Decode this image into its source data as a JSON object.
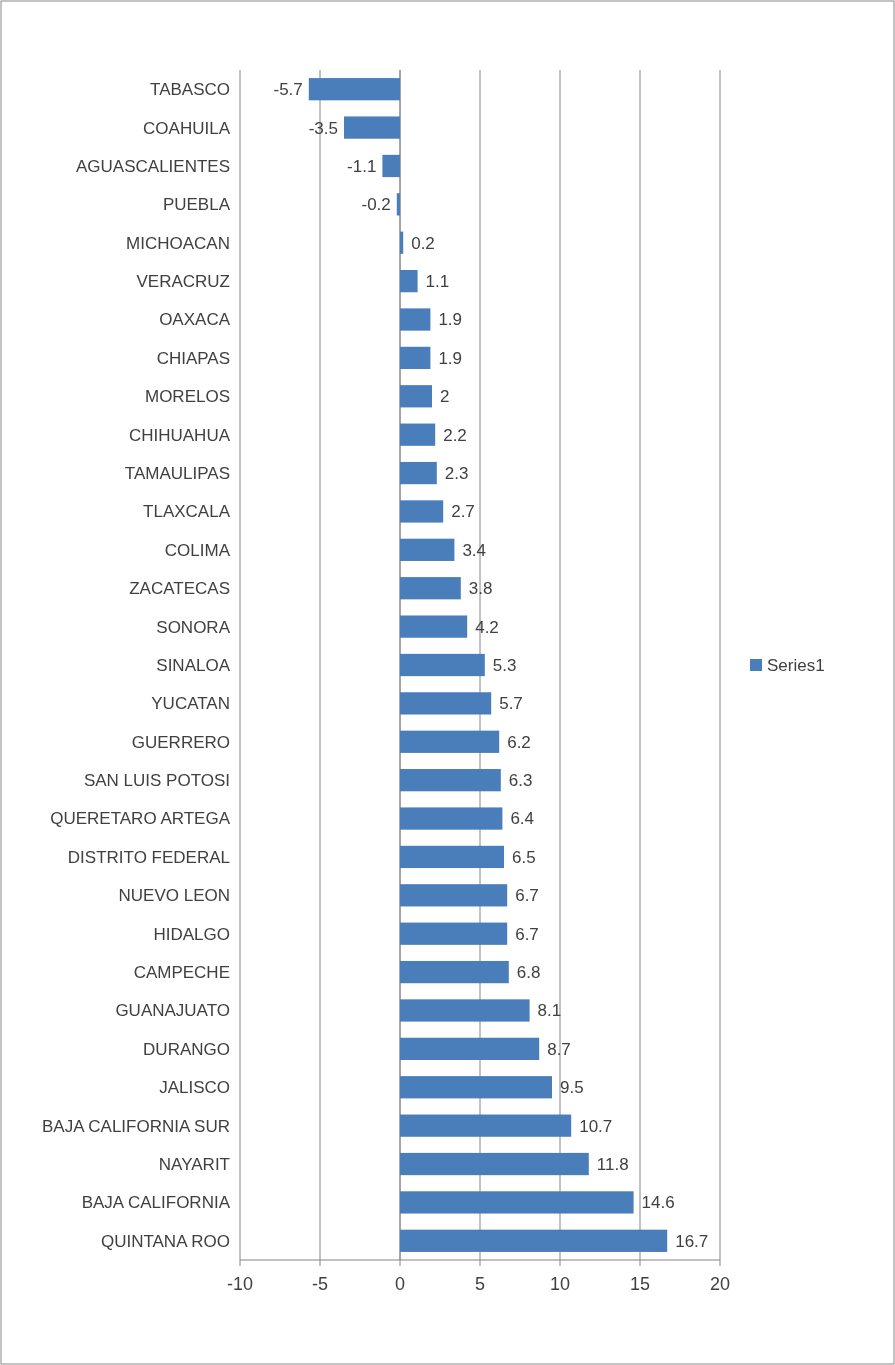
{
  "chart_data": {
    "type": "bar",
    "orientation": "horizontal",
    "categories": [
      "TABASCO",
      "COAHUILA",
      "AGUASCALIENTES",
      "PUEBLA",
      "MICHOACAN",
      "VERACRUZ",
      "OAXACA",
      "CHIAPAS",
      "MORELOS",
      "CHIHUAHUA",
      "TAMAULIPAS",
      "TLAXCALA",
      "COLIMA",
      "ZACATECAS",
      "SONORA",
      "SINALOA",
      "YUCATAN",
      "GUERRERO",
      "SAN LUIS POTOSI",
      "QUERETARO ARTEGA",
      "DISTRITO FEDERAL",
      "NUEVO LEON",
      "HIDALGO",
      "CAMPECHE",
      "GUANAJUATO",
      "DURANGO",
      "JALISCO",
      "BAJA CALIFORNIA SUR",
      "NAYARIT",
      "BAJA CALIFORNIA",
      "QUINTANA ROO"
    ],
    "series": [
      {
        "name": "Series1",
        "color": "#4a7ebb",
        "values": [
          -5.7,
          -3.5,
          -1.1,
          -0.2,
          0.2,
          1.1,
          1.9,
          1.9,
          2,
          2.2,
          2.3,
          2.7,
          3.4,
          3.8,
          4.2,
          5.3,
          5.7,
          6.2,
          6.3,
          6.4,
          6.5,
          6.7,
          6.7,
          6.8,
          8.1,
          8.7,
          9.5,
          10.7,
          11.8,
          14.6,
          16.7
        ]
      }
    ],
    "xlim": [
      -10,
      20
    ],
    "xticks": [
      -10,
      -5,
      0,
      5,
      10,
      15,
      20
    ],
    "grid": "x",
    "legend": "right",
    "data_labels": true
  }
}
